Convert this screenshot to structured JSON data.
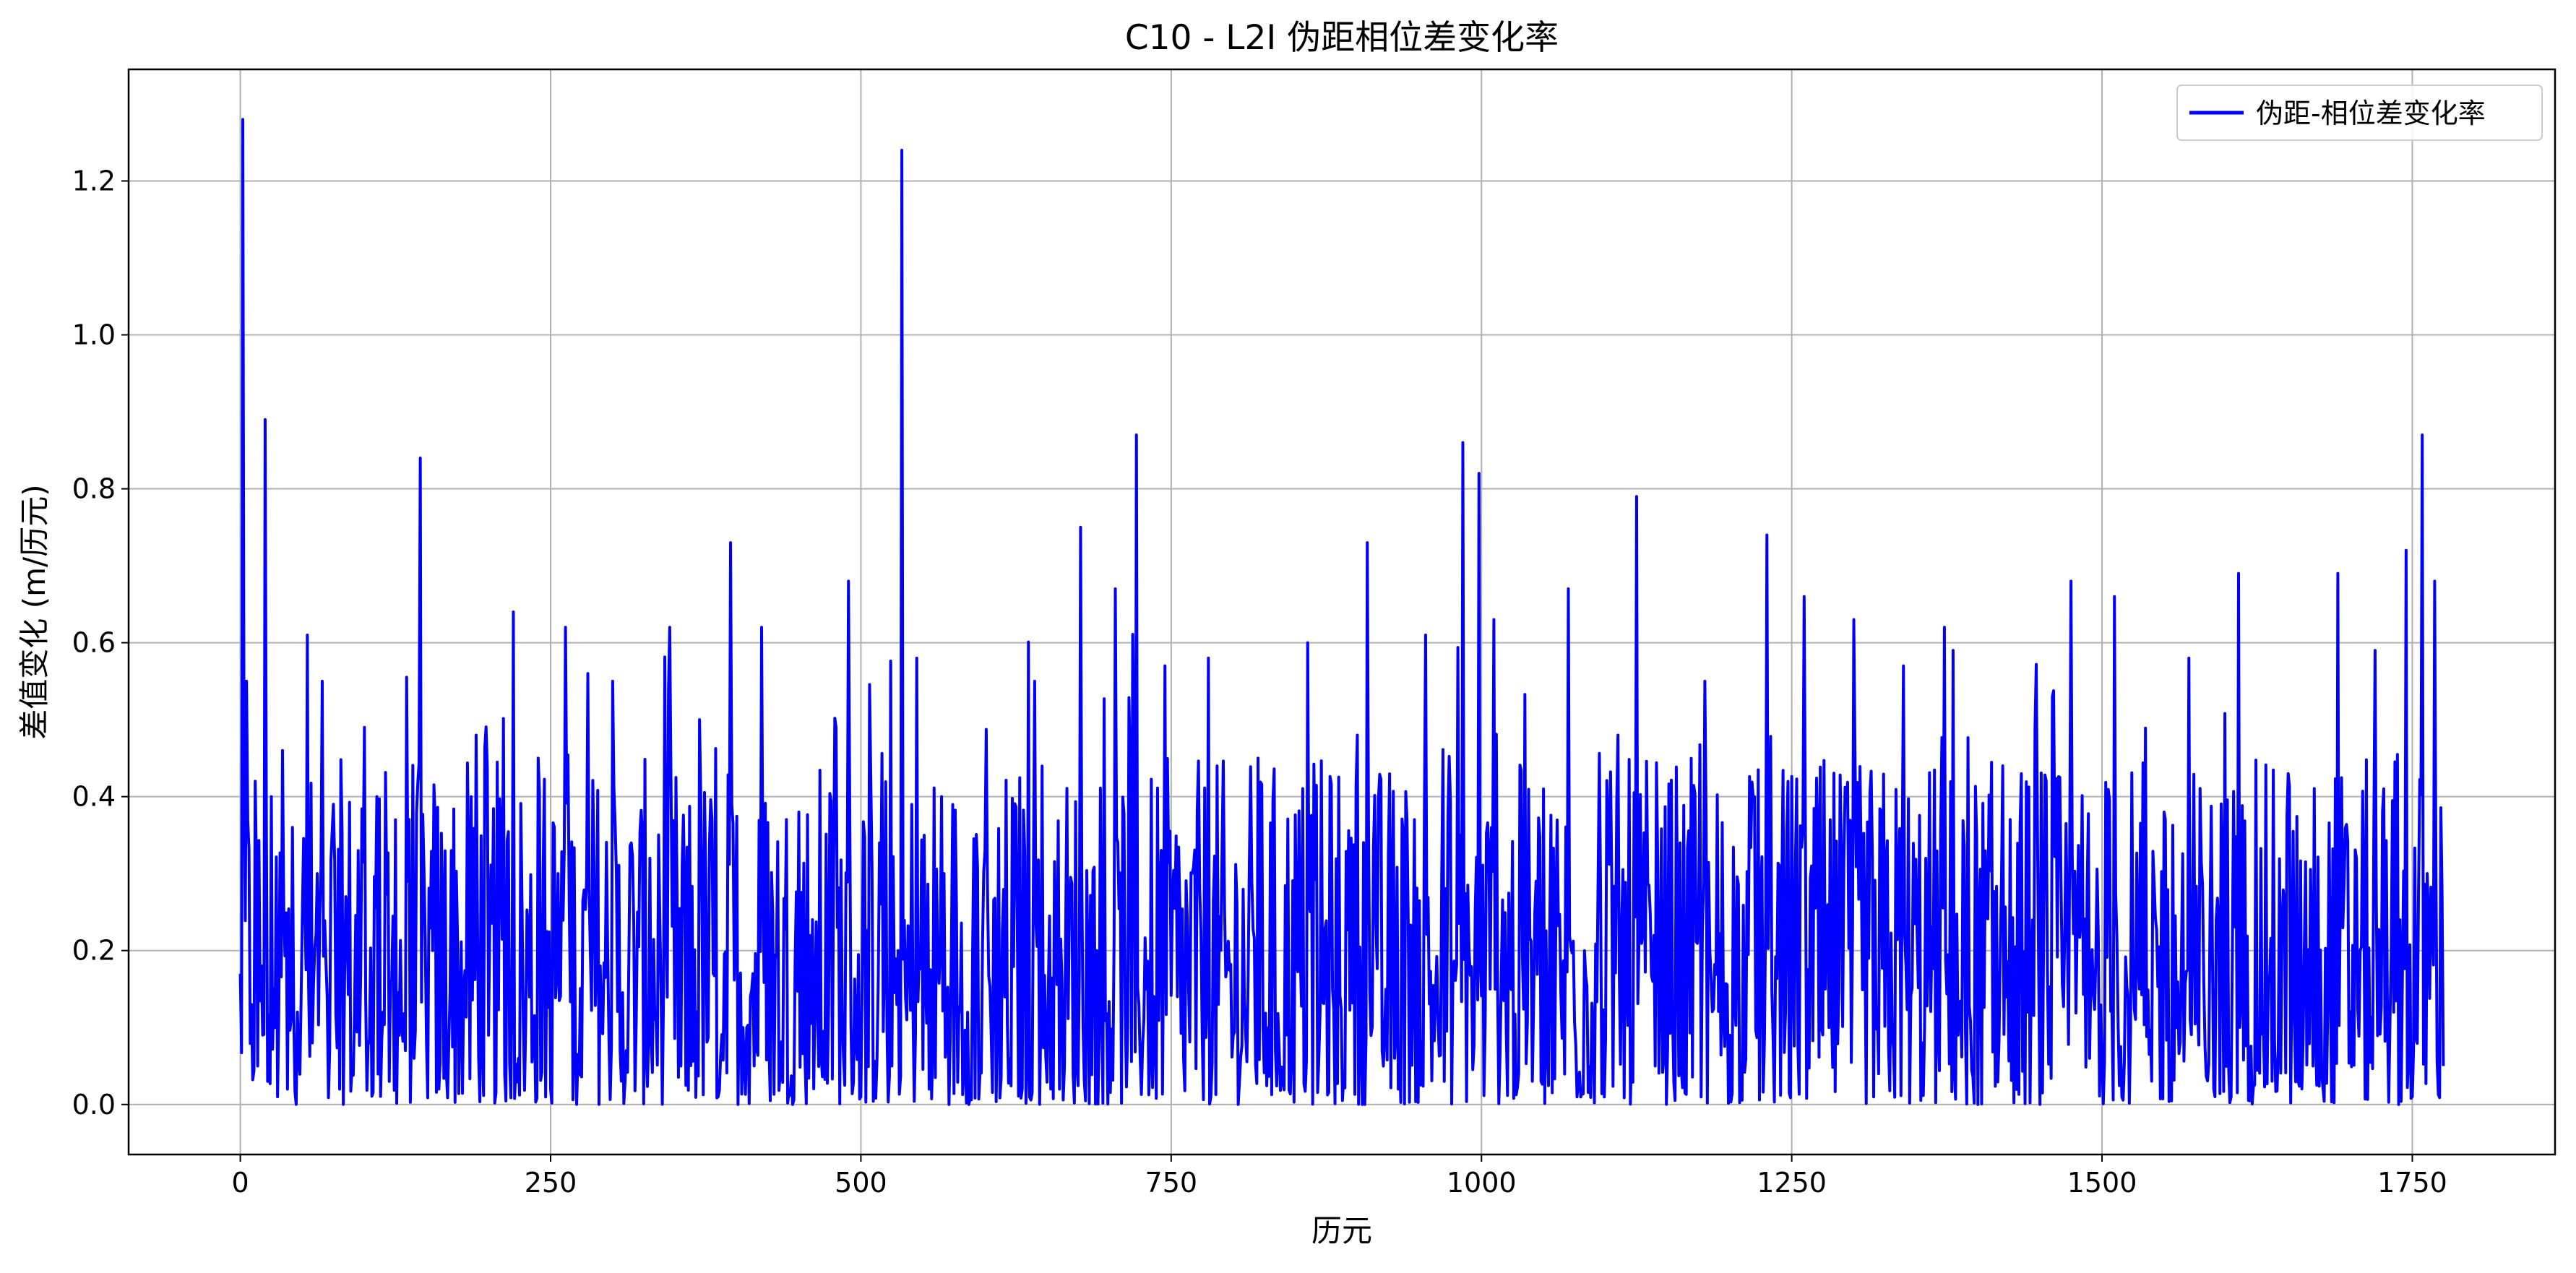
{
  "chart_data": {
    "type": "line",
    "title": "C10 - L2I 伪距相位差变化率",
    "xlabel": "历元",
    "ylabel": "差值变化 (m/历元)",
    "xlim": [
      -90,
      1865
    ],
    "ylim": [
      -0.065,
      1.345
    ],
    "xticks": [
      0,
      250,
      500,
      750,
      1000,
      1250,
      1500,
      1750
    ],
    "xtick_labels": [
      "0",
      "250",
      "500",
      "750",
      "1000",
      "1250",
      "1500",
      "1750"
    ],
    "yticks": [
      0.0,
      0.2,
      0.4,
      0.6,
      0.8,
      1.0,
      1.2
    ],
    "ytick_labels": [
      "0.0",
      "0.2",
      "0.4",
      "0.6",
      "0.8",
      "1.0",
      "1.2"
    ],
    "grid": true,
    "legend_position": "top-right",
    "series": [
      {
        "name": "伪距-相位差变化率",
        "color": "#0000ff",
        "x_start": 0,
        "x_end": 1775,
        "n_points": 1776,
        "sampled_x": [
          0,
          2,
          5,
          9,
          12,
          14,
          17,
          20,
          22,
          25,
          28,
          30,
          34,
          38,
          42,
          46,
          50,
          54,
          58,
          62,
          66,
          70,
          75,
          80,
          85,
          90,
          95,
          100,
          104,
          110,
          115,
          120,
          125,
          130,
          135,
          140,
          145,
          150,
          155,
          160,
          170,
          180,
          190,
          200,
          210,
          220,
          230,
          240,
          250,
          256,
          262,
          270,
          280,
          290,
          300,
          310,
          320,
          330,
          345,
          355,
          370,
          385,
          395,
          405,
          420,
          435,
          450,
          465,
          480,
          490,
          500,
          515,
          525,
          530,
          533,
          537,
          545,
          555,
          565,
          580,
          600,
          620,
          640,
          660,
          677,
          690,
          705,
          715,
          722,
          730,
          745,
          760,
          780,
          800,
          820,
          840,
          860,
          880,
          900,
          908,
          920,
          940,
          955,
          970,
          985,
          990,
          998,
          1010,
          1030,
          1050,
          1070,
          1090,
          1110,
          1125,
          1140,
          1160,
          1180,
          1200,
          1220,
          1230,
          1245,
          1260,
          1280,
          1300,
          1320,
          1340,
          1360,
          1380,
          1400,
          1420,
          1440,
          1460,
          1475,
          1490,
          1510,
          1530,
          1550,
          1570,
          1590,
          1610,
          1630,
          1650,
          1670,
          1690,
          1705,
          1720,
          1735,
          1745,
          1750,
          1758,
          1762,
          1768,
          1775
        ],
        "sampled_y": [
          0.17,
          1.28,
          0.55,
          0.13,
          0.42,
          0.05,
          0.18,
          0.89,
          0.03,
          0.4,
          0.1,
          0.01,
          0.46,
          0.02,
          0.36,
          0.12,
          0.25,
          0.61,
          0.08,
          0.3,
          0.55,
          0.14,
          0.39,
          0.02,
          0.27,
          0.05,
          0.33,
          0.49,
          0.08,
          0.4,
          0.12,
          0.03,
          0.37,
          0.1,
          0.29,
          0.06,
          0.84,
          0.08,
          0.2,
          0.02,
          0.33,
          0.15,
          0.48,
          0.09,
          0.35,
          0.64,
          0.11,
          0.45,
          0.02,
          0.3,
          0.62,
          0.07,
          0.56,
          0.18,
          0.55,
          0.03,
          0.25,
          0.32,
          0.54,
          0.05,
          0.5,
          0.01,
          0.73,
          0.1,
          0.62,
          0.04,
          0.38,
          0.12,
          0.49,
          0.68,
          0.01,
          0.34,
          0.05,
          0.2,
          1.24,
          0.11,
          0.58,
          0.02,
          0.4,
          0.12,
          0.33,
          0.06,
          0.55,
          0.02,
          0.75,
          0.2,
          0.67,
          0.1,
          0.87,
          0.15,
          0.57,
          0.06,
          0.58,
          0.09,
          0.45,
          0.03,
          0.6,
          0.15,
          0.48,
          0.73,
          0.07,
          0.37,
          0.61,
          0.03,
          0.86,
          0.2,
          0.82,
          0.63,
          0.04,
          0.41,
          0.67,
          0.1,
          0.48,
          0.79,
          0.05,
          0.34,
          0.55,
          0.09,
          0.4,
          0.74,
          0.12,
          0.66,
          0.1,
          0.63,
          0.04,
          0.57,
          0.2,
          0.59,
          0.0,
          0.44,
          0.12,
          0.53,
          0.68,
          0.06,
          0.66,
          0.15,
          0.38,
          0.58,
          0.02,
          0.69,
          0.1,
          0.43,
          0.05,
          0.69,
          0.32,
          0.59,
          0.12,
          0.72,
          0.01,
          0.87,
          0.3,
          0.68,
          0.05,
          0.1
        ]
      }
    ]
  }
}
